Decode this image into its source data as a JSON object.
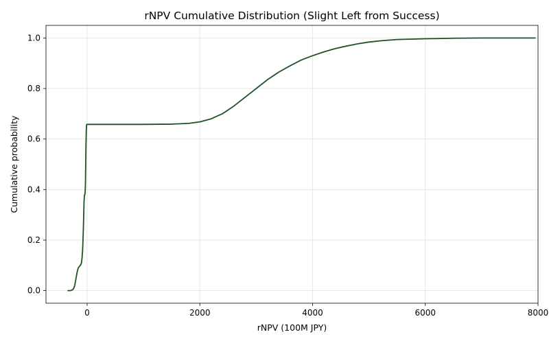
{
  "chart_data": {
    "type": "line",
    "title": "rNPV Cumulative Distribution (Slight Left from Success)",
    "xlabel": "rNPV (100M JPY)",
    "ylabel": "Cumulative probability",
    "xlim": [
      -730,
      8000
    ],
    "ylim": [
      -0.05,
      1.05
    ],
    "xticks": [
      0,
      2000,
      4000,
      6000,
      8000
    ],
    "xtick_labels": [
      "0",
      "2000",
      "4000",
      "6000",
      "8000"
    ],
    "yticks": [
      0.0,
      0.2,
      0.4,
      0.6,
      0.8,
      1.0
    ],
    "ytick_labels": [
      "0.0",
      "0.2",
      "0.4",
      "0.6",
      "0.8",
      "1.0"
    ],
    "grid": true,
    "line_color": "#1f4f24",
    "series": [
      {
        "x": [
          -340,
          -300,
          -280,
          -260,
          -240,
          -220,
          -200,
          -180,
          -160,
          -140,
          -120,
          -100,
          -90,
          -80,
          -70,
          -60,
          -55,
          -50,
          -45,
          -40,
          -35,
          -30,
          -25,
          -20,
          -15,
          -10,
          -5,
          0,
          500,
          1000,
          1500,
          1800,
          2000,
          2200,
          2400,
          2600,
          2800,
          3000,
          3200,
          3400,
          3600,
          3800,
          4000,
          4200,
          4400,
          4600,
          4800,
          5000,
          5200,
          5500,
          6000,
          6500,
          7000,
          7500,
          7950
        ],
        "y": [
          0.0,
          0.0,
          0.001,
          0.003,
          0.008,
          0.02,
          0.045,
          0.07,
          0.088,
          0.095,
          0.1,
          0.11,
          0.13,
          0.16,
          0.22,
          0.3,
          0.35,
          0.37,
          0.38,
          0.38,
          0.39,
          0.42,
          0.5,
          0.58,
          0.63,
          0.655,
          0.658,
          0.658,
          0.658,
          0.658,
          0.659,
          0.662,
          0.668,
          0.68,
          0.7,
          0.73,
          0.765,
          0.8,
          0.835,
          0.865,
          0.89,
          0.913,
          0.93,
          0.945,
          0.958,
          0.968,
          0.977,
          0.984,
          0.989,
          0.994,
          0.997,
          0.999,
          1.0,
          1.0,
          1.0
        ]
      }
    ]
  }
}
